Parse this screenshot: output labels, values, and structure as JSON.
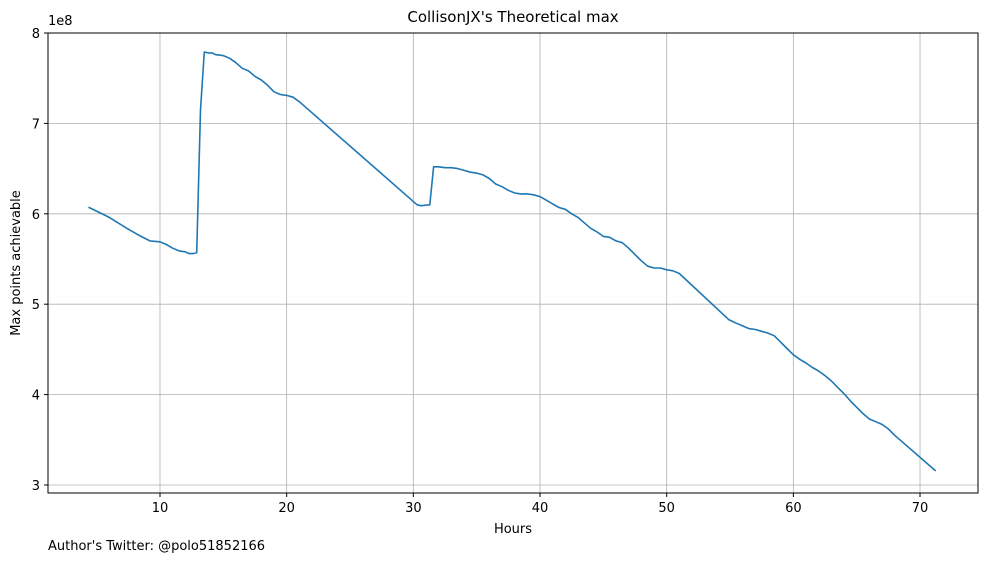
{
  "chart_data": {
    "type": "line",
    "title": "CollisonJX's Theoretical max",
    "xlabel": "Hours",
    "ylabel": "Max points achievable",
    "y_scale_label": "1e8",
    "footnote": "Author's Twitter: @polo51852166",
    "xlim": [
      0,
      75
    ],
    "ylim": [
      3.0,
      8.0
    ],
    "xticks": [
      10,
      20,
      30,
      40,
      50,
      60,
      70
    ],
    "yticks": [
      3,
      4,
      5,
      6,
      7,
      8
    ],
    "grid": true,
    "line_color": "#1f77b4",
    "series": [
      {
        "x": [
          4.4,
          6,
          7.5,
          8.5,
          9.2,
          10,
          10.5,
          11,
          11.5,
          12,
          12.3,
          12.6,
          12.9,
          13.2,
          13.5,
          13.8,
          14.1,
          14.4,
          15,
          15.5,
          16,
          16.5,
          17,
          17.5,
          18,
          18.5,
          19,
          19.5,
          20,
          20.5,
          21,
          30.3,
          30.6,
          31.3,
          31.6,
          32,
          32.5,
          33,
          33.5,
          34,
          34.5,
          35,
          35.5,
          36,
          36.5,
          37,
          37.5,
          38,
          38.5,
          39,
          39.5,
          40,
          40.5,
          41,
          41.5,
          42,
          42.5,
          43,
          43.5,
          44,
          44.5,
          45,
          45.5,
          46,
          46.5,
          47,
          47.5,
          48,
          48.5,
          49,
          49.5,
          50,
          50.5,
          51,
          54.9,
          55.5,
          56,
          56.5,
          57,
          57.5,
          58,
          58.5,
          59,
          59.5,
          60,
          60.5,
          61,
          61.5,
          62,
          62.5,
          63,
          63.5,
          64,
          64.5,
          65,
          65.5,
          66,
          66.5,
          67,
          67.5,
          68,
          71.2
        ],
        "y": [
          6.07,
          5.96,
          5.83,
          5.75,
          5.7,
          5.69,
          5.66,
          5.62,
          5.59,
          5.58,
          5.56,
          5.56,
          5.57,
          7.15,
          7.79,
          7.78,
          7.78,
          7.76,
          7.75,
          7.72,
          7.67,
          7.61,
          7.58,
          7.52,
          7.48,
          7.42,
          7.35,
          7.32,
          7.31,
          7.29,
          7.24,
          6.1,
          6.09,
          6.1,
          6.52,
          6.52,
          6.51,
          6.51,
          6.5,
          6.48,
          6.46,
          6.45,
          6.43,
          6.39,
          6.33,
          6.3,
          6.26,
          6.23,
          6.22,
          6.22,
          6.21,
          6.19,
          6.15,
          6.11,
          6.07,
          6.05,
          6.0,
          5.96,
          5.9,
          5.84,
          5.8,
          5.75,
          5.74,
          5.7,
          5.68,
          5.62,
          5.55,
          5.48,
          5.42,
          5.4,
          5.4,
          5.38,
          5.37,
          5.34,
          4.83,
          4.79,
          4.76,
          4.73,
          4.72,
          4.7,
          4.68,
          4.65,
          4.58,
          4.51,
          4.44,
          4.39,
          4.35,
          4.3,
          4.26,
          4.21,
          4.15,
          4.08,
          4.01,
          3.93,
          3.86,
          3.79,
          3.73,
          3.7,
          3.67,
          3.62,
          3.55,
          3.16
        ]
      }
    ]
  }
}
